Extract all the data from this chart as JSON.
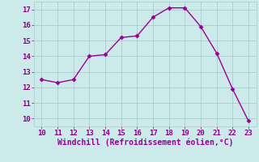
{
  "x": [
    10,
    11,
    12,
    13,
    14,
    15,
    16,
    17,
    18,
    19,
    20,
    21,
    22,
    23
  ],
  "y": [
    12.5,
    12.3,
    12.5,
    14.0,
    14.1,
    15.2,
    15.3,
    16.5,
    17.1,
    17.1,
    15.9,
    14.2,
    11.9,
    9.85
  ],
  "line_color": "#990099",
  "marker": "D",
  "marker_size": 2.5,
  "linewidth": 1.0,
  "xlabel": "Windchill (Refroidissement éolien,°C)",
  "xlabel_color": "#990099",
  "xlabel_fontsize": 7,
  "bg_color": "#cceaea",
  "grid_color": "#aacccc",
  "tick_color": "#880088",
  "tick_fontsize": 6.5,
  "xlim": [
    9.5,
    23.5
  ],
  "ylim": [
    9.5,
    17.5
  ],
  "xticks": [
    10,
    11,
    12,
    13,
    14,
    15,
    16,
    17,
    18,
    19,
    20,
    21,
    22,
    23
  ],
  "yticks": [
    10,
    11,
    12,
    13,
    14,
    15,
    16,
    17
  ]
}
